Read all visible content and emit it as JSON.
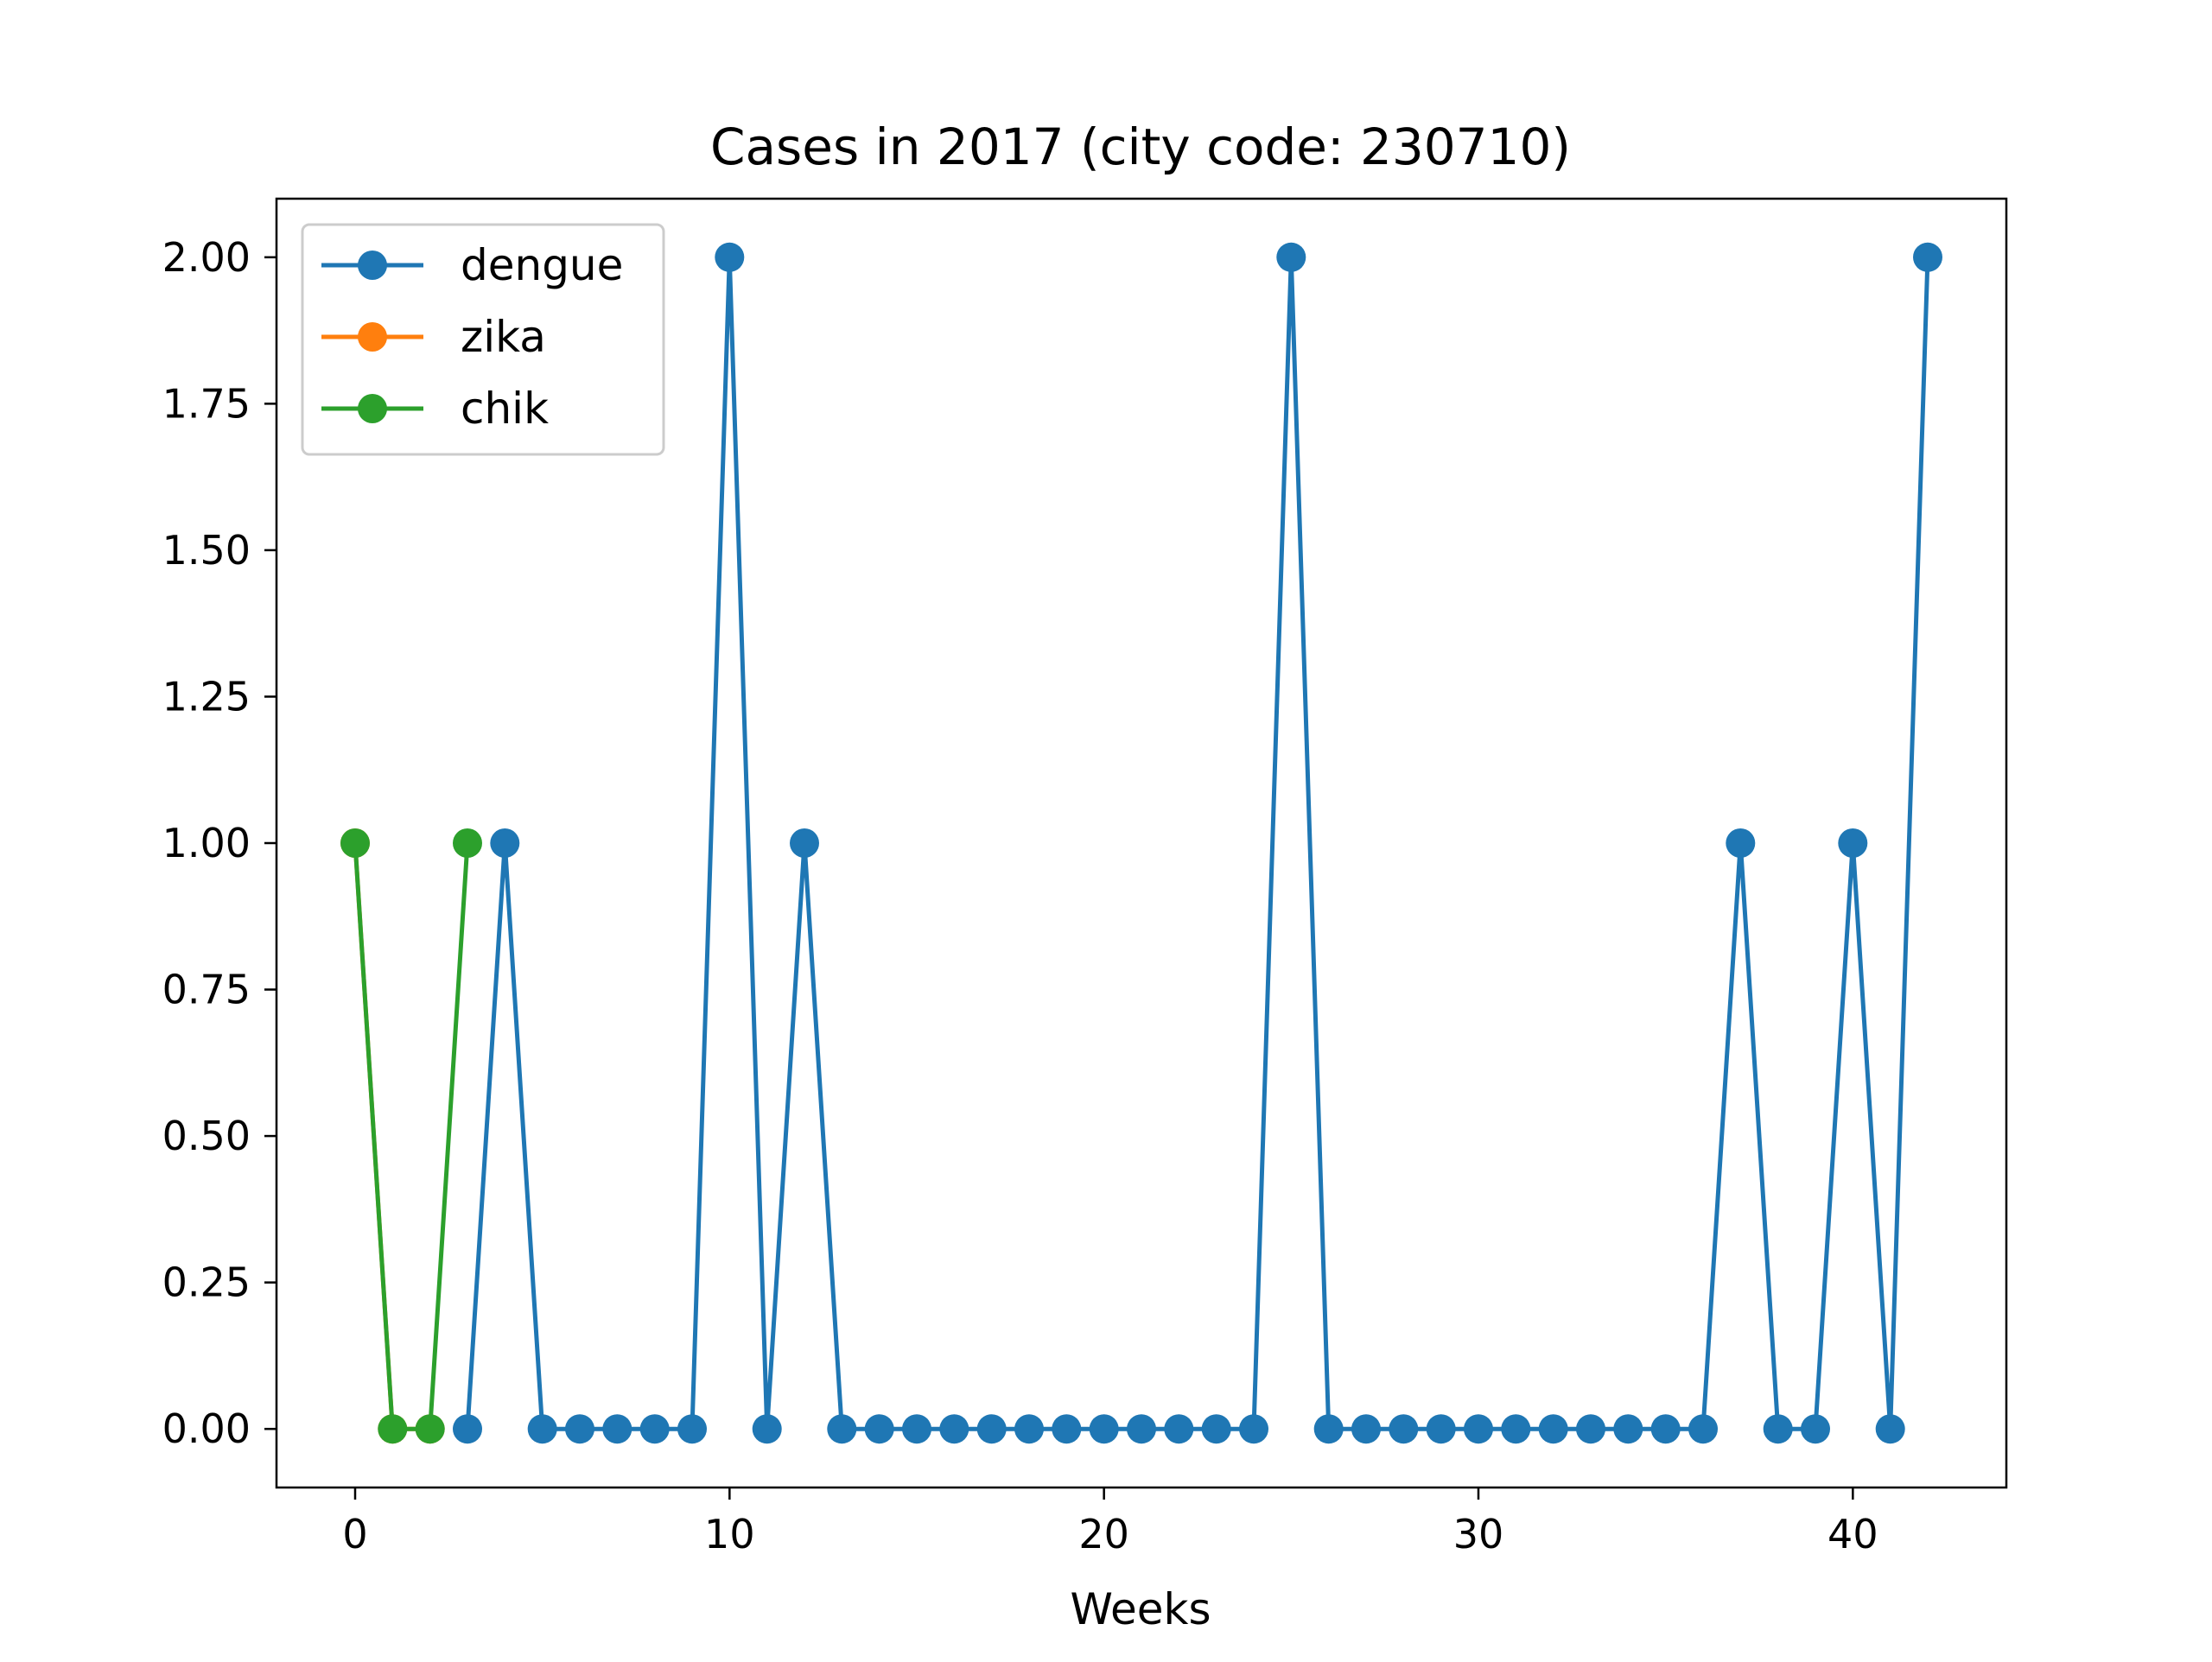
{
  "chart_data": {
    "type": "line",
    "title": "Cases in 2017 (city code: 230710)",
    "xlabel": "Weeks",
    "ylabel": "",
    "xlim": [
      -2.1,
      44.1
    ],
    "ylim": [
      -0.1,
      2.1
    ],
    "x_ticks": [
      0,
      10,
      20,
      30,
      40
    ],
    "x_tick_labels": [
      "0",
      "10",
      "20",
      "30",
      "40"
    ],
    "y_ticks": [
      0.0,
      0.25,
      0.5,
      0.75,
      1.0,
      1.25,
      1.5,
      1.75,
      2.0
    ],
    "y_tick_labels": [
      "0.00",
      "0.25",
      "0.50",
      "0.75",
      "1.00",
      "1.25",
      "1.50",
      "1.75",
      "2.00"
    ],
    "grid": false,
    "legend_position": "top-left",
    "series": [
      {
        "name": "dengue",
        "color": "#1f77b4",
        "x": [
          3,
          4,
          5,
          6,
          7,
          8,
          9,
          10,
          11,
          12,
          13,
          14,
          15,
          16,
          17,
          18,
          19,
          20,
          21,
          22,
          23,
          24,
          25,
          26,
          27,
          28,
          29,
          30,
          31,
          32,
          33,
          34,
          35,
          36,
          37,
          38,
          39,
          40,
          41,
          42
        ],
        "values": [
          0,
          1,
          0,
          0,
          0,
          0,
          0,
          2,
          0,
          1,
          0,
          0,
          0,
          0,
          0,
          0,
          0,
          0,
          0,
          0,
          0,
          0,
          2,
          0,
          0,
          0,
          0,
          0,
          0,
          0,
          0,
          0,
          0,
          0,
          1,
          0,
          0,
          1,
          0,
          2
        ]
      },
      {
        "name": "zika",
        "color": "#ff7f0e",
        "x": [
          0,
          1,
          2
        ],
        "values": [
          1,
          0,
          0
        ]
      },
      {
        "name": "chik",
        "color": "#2ca02c",
        "x": [
          0,
          1,
          2,
          3
        ],
        "values": [
          1,
          0,
          0,
          1
        ]
      }
    ]
  }
}
